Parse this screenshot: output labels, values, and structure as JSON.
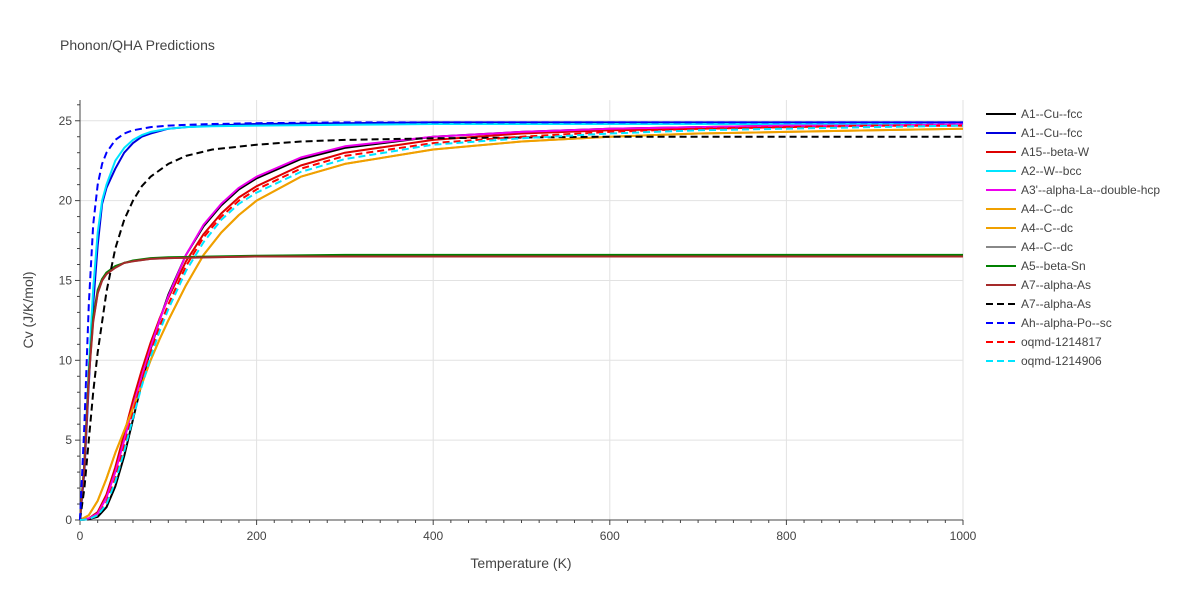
{
  "chart_data": {
    "type": "line",
    "title": "Phonon/QHA Predictions",
    "xlabel": "Temperature (K)",
    "ylabel": "Cv (J/K/mol)",
    "xlim": [
      0,
      1000
    ],
    "ylim": [
      0,
      26.3
    ],
    "xticks": [
      0,
      200,
      400,
      600,
      800,
      1000
    ],
    "yticks": [
      0,
      5,
      10,
      15,
      20,
      25
    ],
    "grid": true,
    "legend_position": "right",
    "series": [
      {
        "name": "A1--Cu--fcc",
        "color": "#000000",
        "dash": "solid",
        "x": [
          0,
          10,
          20,
          30,
          40,
          50,
          60,
          70,
          80,
          90,
          100,
          120,
          140,
          160,
          180,
          200,
          250,
          300,
          400,
          500,
          600,
          700,
          800,
          900,
          1000
        ],
        "y": [
          0,
          0.05,
          0.2,
          0.8,
          2.1,
          4.0,
          6.3,
          8.6,
          10.7,
          12.5,
          14.1,
          16.6,
          18.4,
          19.7,
          20.7,
          21.4,
          22.6,
          23.3,
          24.0,
          24.3,
          24.5,
          24.6,
          24.7,
          24.7,
          24.8
        ]
      },
      {
        "name": "A1--Cu--fcc",
        "color": "#0000dd",
        "dash": "solid",
        "x": [
          0,
          5,
          10,
          15,
          20,
          25,
          30,
          40,
          50,
          60,
          70,
          80,
          100,
          120,
          150,
          200,
          300,
          400,
          600,
          800,
          1000
        ],
        "y": [
          0,
          3.0,
          8.5,
          13.5,
          17.2,
          19.8,
          20.8,
          22.0,
          23.0,
          23.6,
          24.0,
          24.2,
          24.5,
          24.6,
          24.7,
          24.8,
          24.85,
          24.9,
          24.9,
          24.9,
          24.9
        ]
      },
      {
        "name": "A15--beta-W",
        "color": "#dd0000",
        "dash": "solid",
        "x": [
          0,
          10,
          20,
          30,
          40,
          50,
          60,
          70,
          80,
          90,
          100,
          120,
          140,
          160,
          180,
          200,
          250,
          300,
          400,
          500,
          600,
          700,
          800,
          900,
          1000
        ],
        "y": [
          0,
          0.1,
          0.5,
          1.6,
          3.3,
          5.4,
          7.5,
          9.4,
          11.1,
          12.6,
          13.9,
          16.2,
          17.9,
          19.2,
          20.2,
          20.9,
          22.2,
          23.0,
          23.8,
          24.2,
          24.4,
          24.5,
          24.6,
          24.7,
          24.7
        ]
      },
      {
        "name": "A2--W--bcc",
        "color": "#00e5ff",
        "dash": "solid",
        "x": [
          0,
          5,
          10,
          15,
          20,
          25,
          30,
          40,
          50,
          60,
          70,
          80,
          100,
          120,
          150,
          200,
          300,
          400,
          600,
          800,
          1000
        ],
        "y": [
          0,
          3.5,
          9.5,
          14.5,
          18.0,
          20.0,
          21.0,
          22.5,
          23.3,
          23.8,
          24.1,
          24.3,
          24.5,
          24.6,
          24.65,
          24.7,
          24.75,
          24.8,
          24.8,
          24.8,
          24.8
        ]
      },
      {
        "name": "A3'--alpha-La--double-hcp",
        "color": "#ee00ee",
        "dash": "solid",
        "x": [
          0,
          10,
          20,
          30,
          40,
          50,
          60,
          70,
          80,
          90,
          100,
          120,
          140,
          160,
          180,
          200,
          250,
          300,
          400,
          500,
          600,
          700,
          800,
          900,
          1000
        ],
        "y": [
          0,
          0.1,
          0.4,
          1.4,
          3.0,
          5.0,
          7.1,
          9.0,
          10.8,
          12.5,
          14.0,
          16.6,
          18.5,
          19.8,
          20.8,
          21.5,
          22.7,
          23.4,
          24.0,
          24.3,
          24.5,
          24.6,
          24.7,
          24.7,
          24.8
        ]
      },
      {
        "name": "A4--C--dc",
        "color": "#f0a000",
        "dash": "solid",
        "x": [
          0,
          10,
          20,
          30,
          40,
          50,
          60,
          70,
          80,
          90,
          100,
          120,
          140,
          160,
          180,
          200,
          250,
          300,
          400,
          500,
          600,
          700,
          800,
          900,
          1000
        ],
        "y": [
          0,
          0.3,
          1.2,
          2.6,
          4.2,
          5.6,
          7.0,
          8.5,
          10.0,
          11.3,
          12.5,
          14.7,
          16.6,
          18.0,
          19.1,
          20.0,
          21.5,
          22.3,
          23.2,
          23.7,
          24.0,
          24.2,
          24.3,
          24.4,
          24.5
        ]
      },
      {
        "name": "A4--C--dc",
        "color": "#f0a000",
        "dash": "solid",
        "x": [
          0,
          10,
          20,
          30,
          40,
          50,
          60,
          70,
          80,
          90,
          100,
          120,
          140,
          160,
          180,
          200,
          250,
          300,
          400,
          500,
          600,
          700,
          800,
          900,
          1000
        ],
        "y": [
          0,
          0.3,
          1.2,
          2.6,
          4.2,
          5.6,
          7.0,
          8.5,
          10.0,
          11.3,
          12.5,
          14.7,
          16.6,
          18.0,
          19.1,
          20.0,
          21.5,
          22.3,
          23.2,
          23.7,
          24.0,
          24.2,
          24.3,
          24.4,
          24.5
        ]
      },
      {
        "name": "A4--C--dc",
        "color": "#888888",
        "dash": "solid",
        "x": [
          0,
          5,
          10,
          15,
          20,
          25,
          30,
          40,
          50,
          60,
          80,
          100,
          150,
          200,
          300,
          400,
          600,
          800,
          1000
        ],
        "y": [
          0,
          3.5,
          9.0,
          12.5,
          14.2,
          15.0,
          15.4,
          15.8,
          16.1,
          16.2,
          16.35,
          16.4,
          16.45,
          16.5,
          16.5,
          16.5,
          16.5,
          16.55,
          16.55
        ]
      },
      {
        "name": "A5--beta-Sn",
        "color": "#008000",
        "dash": "solid",
        "x": [
          0,
          5,
          10,
          15,
          20,
          25,
          30,
          40,
          50,
          60,
          80,
          100,
          150,
          200,
          300,
          400,
          600,
          800,
          1000
        ],
        "y": [
          0,
          3.6,
          9.2,
          12.7,
          14.4,
          15.1,
          15.5,
          15.9,
          16.1,
          16.25,
          16.4,
          16.45,
          16.5,
          16.55,
          16.6,
          16.6,
          16.6,
          16.6,
          16.6
        ]
      },
      {
        "name": "A7--alpha-As",
        "color": "#a52a2a",
        "dash": "solid",
        "x": [
          0,
          5,
          10,
          15,
          20,
          25,
          30,
          40,
          50,
          60,
          80,
          100,
          150,
          200,
          300,
          400,
          600,
          800,
          1000
        ],
        "y": [
          0,
          3.4,
          8.9,
          12.4,
          14.2,
          15.0,
          15.4,
          15.8,
          16.1,
          16.2,
          16.35,
          16.4,
          16.45,
          16.5,
          16.5,
          16.5,
          16.5,
          16.5,
          16.5
        ]
      },
      {
        "name": "A7--alpha-As",
        "color": "#000000",
        "dash": "dash",
        "x": [
          0,
          5,
          10,
          15,
          20,
          30,
          40,
          50,
          60,
          70,
          80,
          100,
          120,
          150,
          200,
          250,
          300,
          400,
          500,
          600,
          800,
          1000
        ],
        "y": [
          0,
          2.0,
          5.0,
          8.0,
          10.5,
          14.3,
          17.0,
          18.8,
          20.0,
          20.9,
          21.5,
          22.3,
          22.8,
          23.2,
          23.5,
          23.7,
          23.8,
          23.9,
          23.95,
          24.0,
          24.0,
          24.0
        ]
      },
      {
        "name": "Ah--alpha-Po--sc",
        "color": "#0000ff",
        "dash": "dash",
        "x": [
          0,
          5,
          10,
          15,
          20,
          25,
          30,
          40,
          50,
          60,
          70,
          80,
          100,
          120,
          150,
          200,
          300,
          400,
          600,
          800,
          1000
        ],
        "y": [
          0,
          6.0,
          13.5,
          18.5,
          21.0,
          22.3,
          23.0,
          23.8,
          24.2,
          24.4,
          24.5,
          24.6,
          24.7,
          24.75,
          24.8,
          24.85,
          24.9,
          24.9,
          24.9,
          24.9,
          24.9
        ]
      },
      {
        "name": "oqmd-1214817",
        "color": "#ff0000",
        "dash": "dash",
        "x": [
          0,
          10,
          20,
          30,
          40,
          50,
          60,
          70,
          80,
          90,
          100,
          120,
          140,
          160,
          180,
          200,
          250,
          300,
          400,
          500,
          600,
          700,
          800,
          900,
          1000
        ],
        "y": [
          0,
          0.05,
          0.3,
          1.1,
          2.6,
          4.6,
          6.7,
          8.7,
          10.5,
          12.1,
          13.5,
          15.9,
          17.7,
          19.0,
          20.0,
          20.7,
          22.0,
          22.8,
          23.6,
          24.0,
          24.3,
          24.5,
          24.6,
          24.7,
          24.7
        ]
      },
      {
        "name": "oqmd-1214906",
        "color": "#00e5ff",
        "dash": "dash",
        "x": [
          0,
          10,
          20,
          30,
          40,
          50,
          60,
          70,
          80,
          90,
          100,
          120,
          140,
          160,
          180,
          200,
          250,
          300,
          400,
          500,
          600,
          700,
          800,
          900,
          1000
        ],
        "y": [
          0,
          0.05,
          0.3,
          1.0,
          2.4,
          4.3,
          6.4,
          8.4,
          10.2,
          11.8,
          13.2,
          15.6,
          17.4,
          18.8,
          19.8,
          20.5,
          21.8,
          22.6,
          23.5,
          23.9,
          24.2,
          24.4,
          24.5,
          24.6,
          24.7
        ]
      }
    ]
  }
}
